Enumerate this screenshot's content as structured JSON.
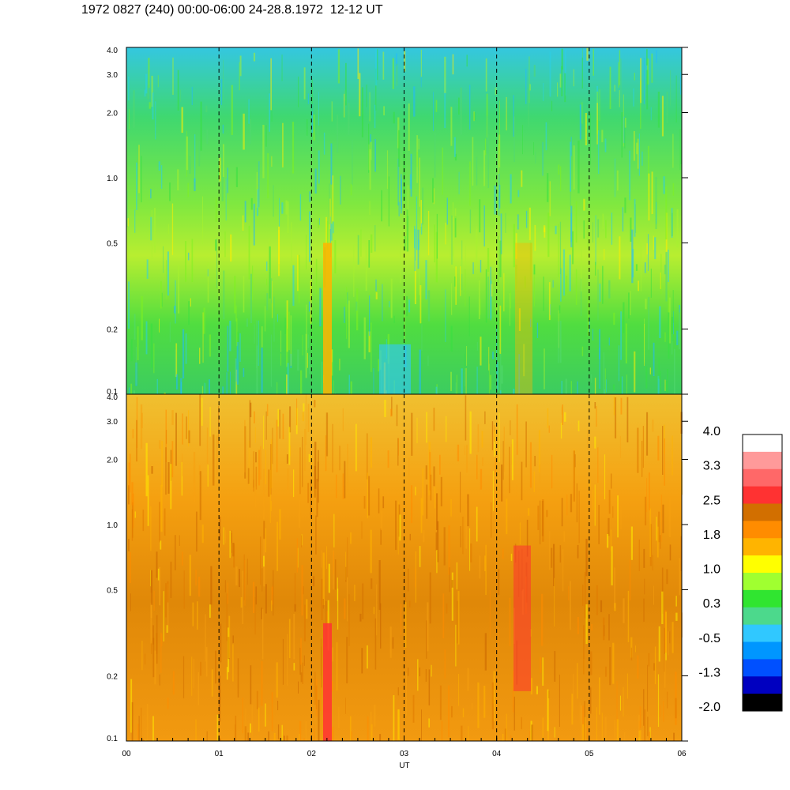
{
  "title": "1972 0827 (240) 00:00-06:00 24-28.8.1972  12-12 UT",
  "chart_data": [
    {
      "type": "heatmap",
      "panel": "upper",
      "y_ticks": [
        "0.1",
        "0.2",
        "0.5",
        "1.0",
        "2.0",
        "3.0",
        "4.0"
      ],
      "y_scale": "log",
      "ylim": [
        0.1,
        4.0
      ],
      "xlim": [
        0,
        6
      ],
      "vertical_markers": [
        1,
        2,
        3,
        4,
        5
      ],
      "description_values": "mostly 0.3 to 1.5, bluer (-0.5 to 0.3) at top, yellow/orange bands 0.5-1.0"
    },
    {
      "type": "heatmap",
      "panel": "lower",
      "y_ticks": [
        "0.1",
        "0.2",
        "0.5",
        "1.0",
        "2.0",
        "3.0",
        "4.0"
      ],
      "y_scale": "log",
      "ylim": [
        0.1,
        4.0
      ],
      "xlim": [
        0,
        6
      ],
      "vertical_markers": [
        1,
        2,
        3,
        4,
        5
      ],
      "description_values": "mostly 1.5 to 2.3, red (2.5-3.0) near 02:10 and 04:15 low frequencies"
    }
  ],
  "x_axis": {
    "ticks": [
      "00",
      "01",
      "02",
      "03",
      "04",
      "05",
      "06"
    ],
    "label": "UT"
  },
  "colorbar": {
    "labels": [
      "4.0",
      "3.3",
      "2.5",
      "1.8",
      "1.0",
      "0.3",
      "-0.5",
      "-1.3",
      "-2.0"
    ],
    "colors": [
      "#ffffff",
      "#ff9a9a",
      "#ff6868",
      "#ff3232",
      "#d26f00",
      "#ff8c00",
      "#ffb400",
      "#ffff00",
      "#a0ff30",
      "#30e530",
      "#4cd98c",
      "#30c8ff",
      "#0096ff",
      "#0050ff",
      "#0000c0",
      "#000000"
    ]
  }
}
